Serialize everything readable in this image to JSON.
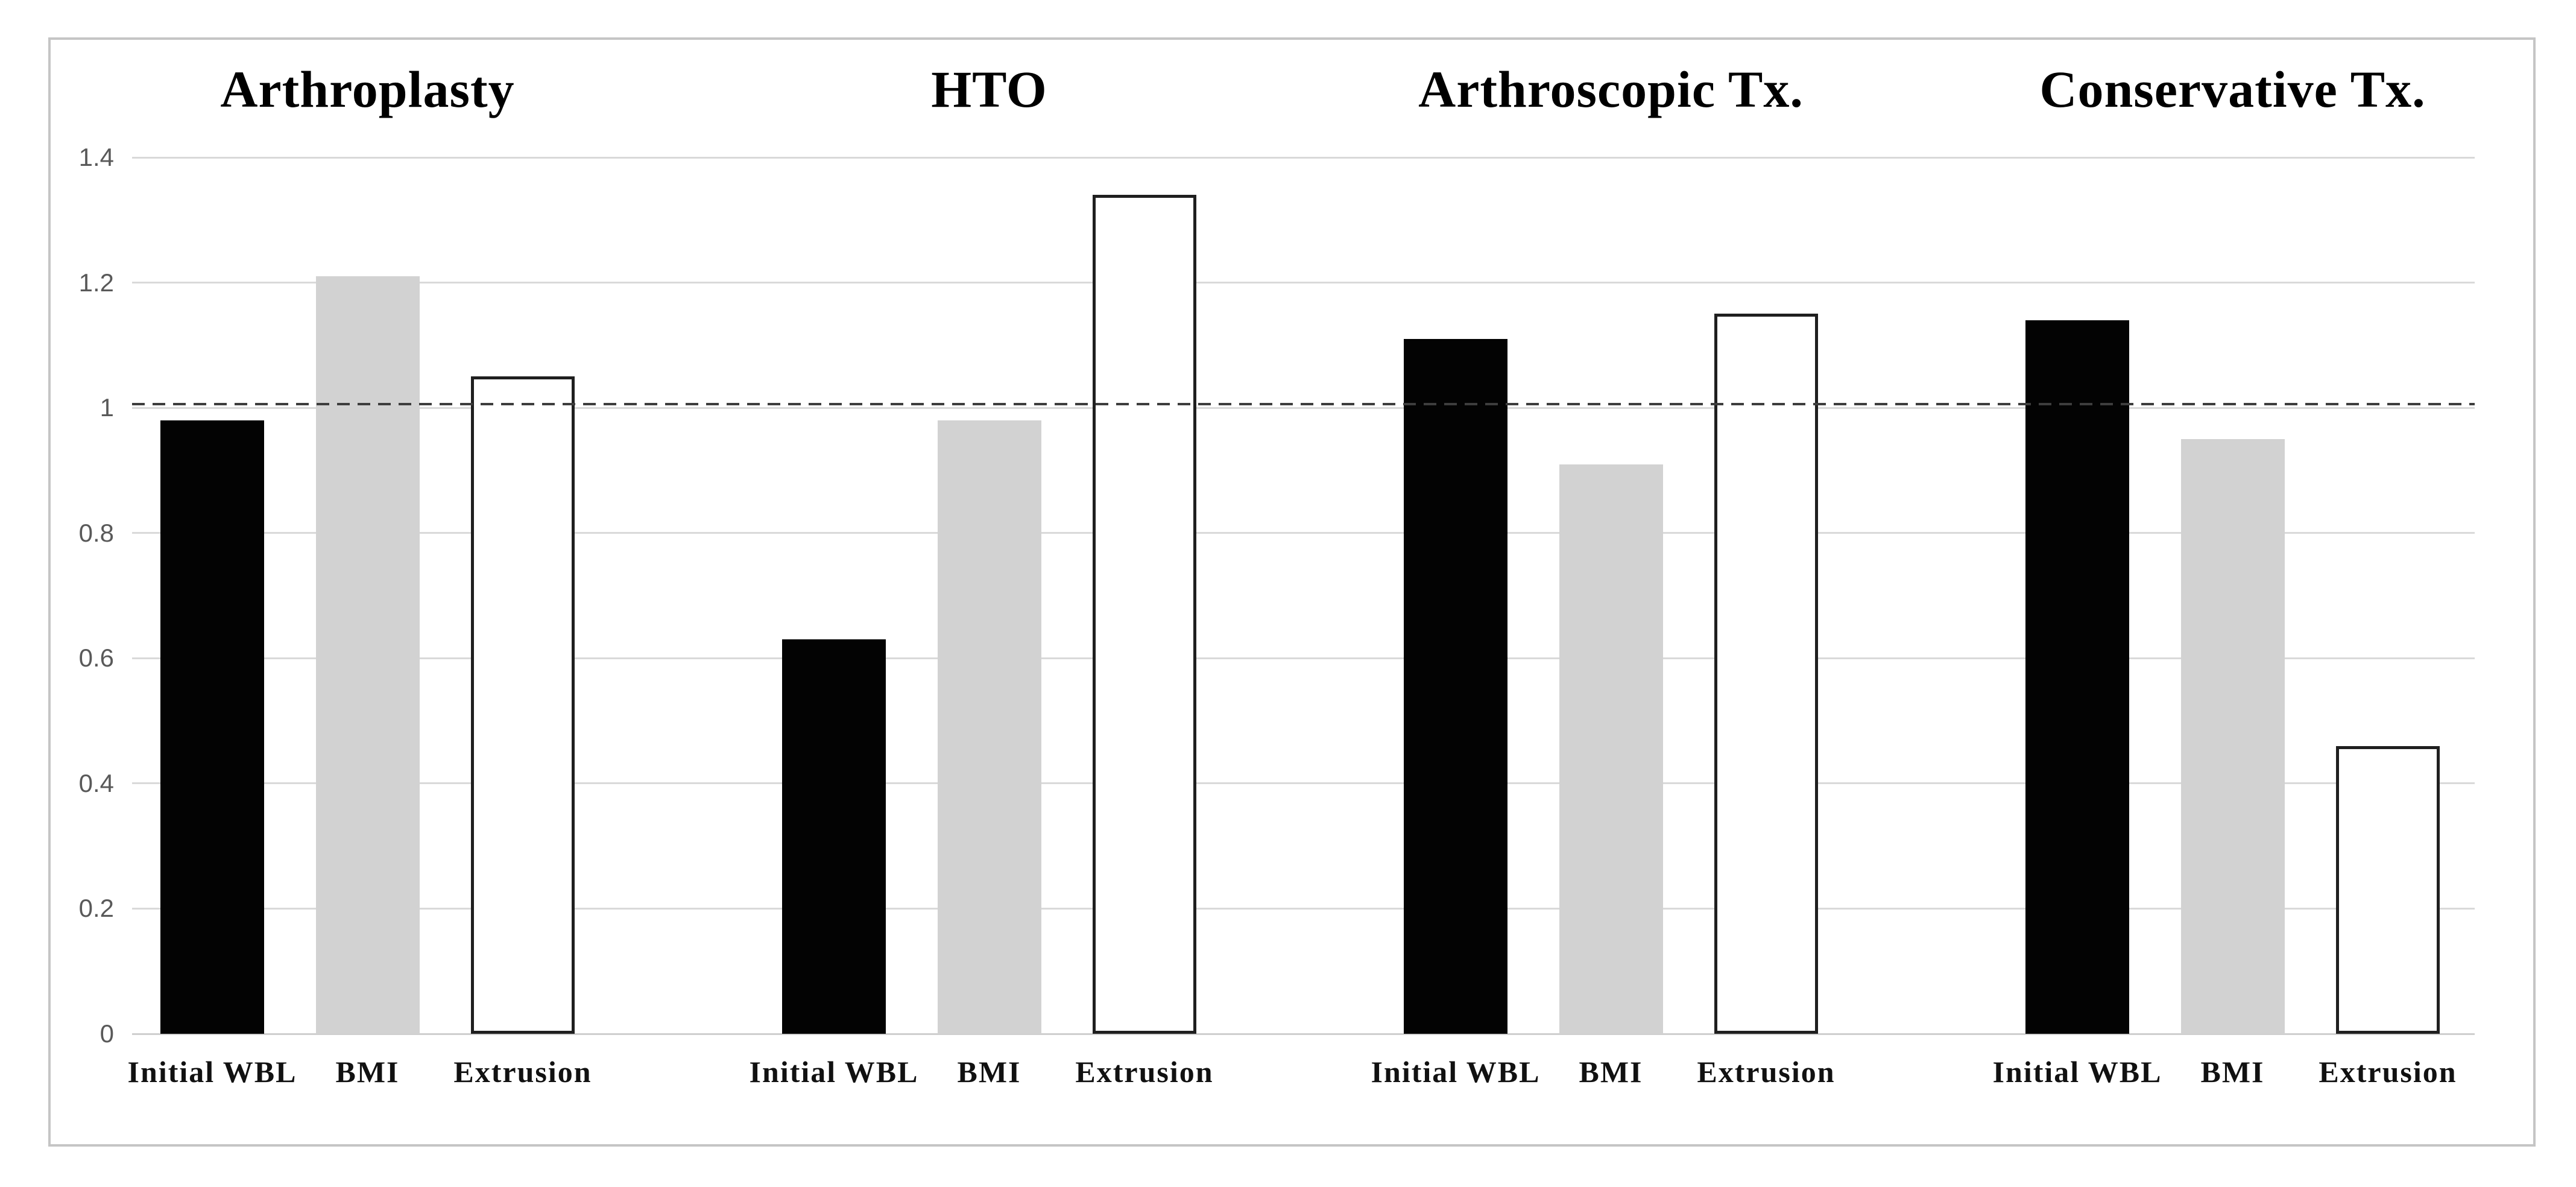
{
  "chart_data": {
    "type": "bar",
    "title": "",
    "group_titles": [
      "Arthroplasty",
      "HTO",
      "Arthroscopic Tx.",
      "Conservative Tx."
    ],
    "categories": [
      "Initial WBL",
      "BMI",
      "Extrusion"
    ],
    "series": [
      {
        "name": "Initial WBL",
        "fill": "#030303",
        "border": null,
        "values": [
          0.98,
          0.63,
          1.11,
          1.14
        ]
      },
      {
        "name": "BMI",
        "fill": "#d2d2d2",
        "border": null,
        "values": [
          1.21,
          0.98,
          0.91,
          0.95
        ]
      },
      {
        "name": "Extrusion",
        "fill": "#ffffff",
        "border": "#1f1f1f",
        "values": [
          1.05,
          1.34,
          1.15,
          0.46
        ]
      }
    ],
    "xlabel": "",
    "ylabel": "",
    "ylim": [
      0,
      1.4
    ],
    "y_ticks": [
      1.4,
      1.2,
      1,
      0.8,
      0.6,
      0.4,
      0.2,
      0
    ],
    "y_tick_labels": [
      "1.4",
      "1.2",
      "1",
      "0.8",
      "0.6",
      "0.4",
      "0.2",
      "0"
    ],
    "reference_line": 1.0,
    "grid": true,
    "legend_position": "none"
  },
  "colors": {
    "background": "#ffffff",
    "frame_border": "#c5c5c5",
    "gridline": "#d9d9d9",
    "reference_line": "#3d3d3d",
    "tick_label": "#595959",
    "text": "#000000"
  }
}
